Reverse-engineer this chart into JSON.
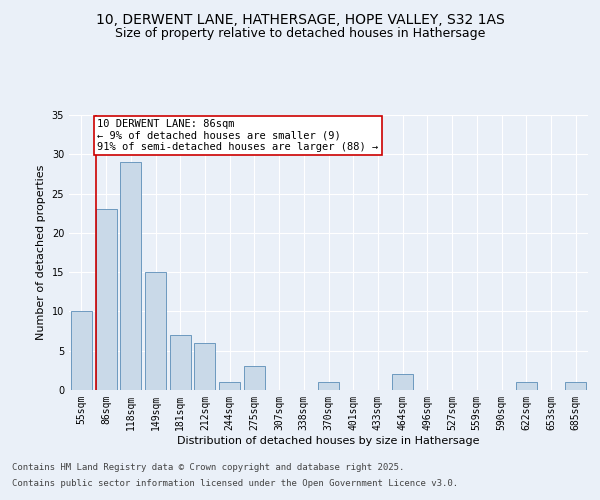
{
  "title_line1": "10, DERWENT LANE, HATHERSAGE, HOPE VALLEY, S32 1AS",
  "title_line2": "Size of property relative to detached houses in Hathersage",
  "xlabel": "Distribution of detached houses by size in Hathersage",
  "ylabel": "Number of detached properties",
  "categories": [
    "55sqm",
    "86sqm",
    "118sqm",
    "149sqm",
    "181sqm",
    "212sqm",
    "244sqm",
    "275sqm",
    "307sqm",
    "338sqm",
    "370sqm",
    "401sqm",
    "433sqm",
    "464sqm",
    "496sqm",
    "527sqm",
    "559sqm",
    "590sqm",
    "622sqm",
    "653sqm",
    "685sqm"
  ],
  "values": [
    10,
    23,
    29,
    15,
    7,
    6,
    1,
    3,
    0,
    0,
    1,
    0,
    0,
    2,
    0,
    0,
    0,
    0,
    1,
    0,
    1
  ],
  "bar_color": "#c9d9e8",
  "bar_edge_color": "#5b8db8",
  "highlight_index": 1,
  "highlight_line_color": "#cc0000",
  "annotation_text": "10 DERWENT LANE: 86sqm\n← 9% of detached houses are smaller (9)\n91% of semi-detached houses are larger (88) →",
  "annotation_box_color": "#ffffff",
  "annotation_box_edge": "#cc0000",
  "ylim": [
    0,
    35
  ],
  "yticks": [
    0,
    5,
    10,
    15,
    20,
    25,
    30,
    35
  ],
  "bg_color": "#eaf0f8",
  "plot_bg_color": "#eaf0f8",
  "footer_line1": "Contains HM Land Registry data © Crown copyright and database right 2025.",
  "footer_line2": "Contains public sector information licensed under the Open Government Licence v3.0.",
  "title_fontsize": 10,
  "subtitle_fontsize": 9,
  "axis_label_fontsize": 8,
  "tick_fontsize": 7,
  "annotation_fontsize": 7.5,
  "footer_fontsize": 6.5
}
